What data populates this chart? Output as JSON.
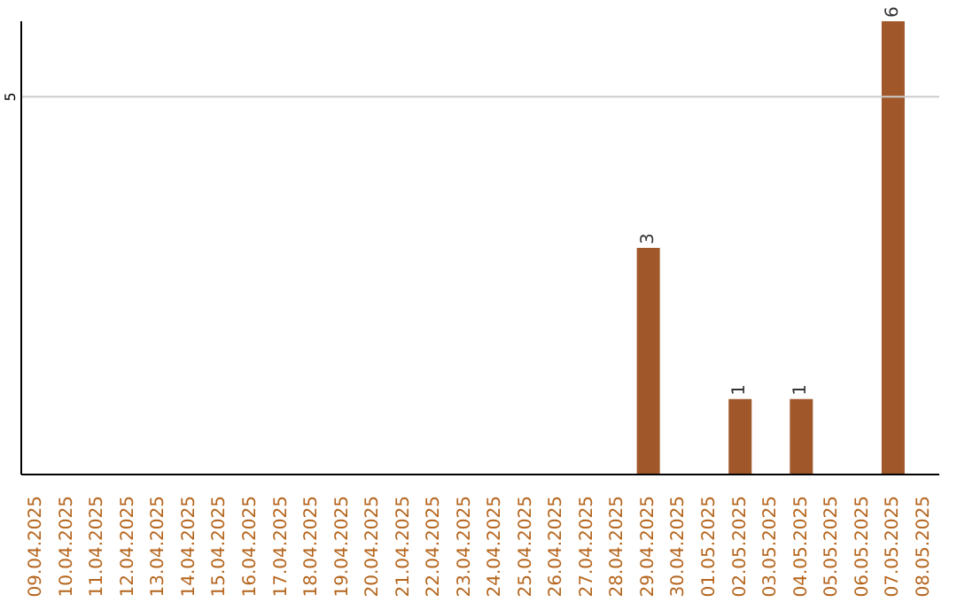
{
  "chart_data": {
    "type": "bar",
    "categories": [
      "09.04.2025",
      "10.04.2025",
      "11.04.2025",
      "12.04.2025",
      "13.04.2025",
      "14.04.2025",
      "15.04.2025",
      "16.04.2025",
      "17.04.2025",
      "18.04.2025",
      "19.04.2025",
      "20.04.2025",
      "21.04.2025",
      "22.04.2025",
      "23.04.2025",
      "24.04.2025",
      "25.04.2025",
      "26.04.2025",
      "27.04.2025",
      "28.04.2025",
      "29.04.2025",
      "30.04.2025",
      "01.05.2025",
      "02.05.2025",
      "03.05.2025",
      "04.05.2025",
      "05.05.2025",
      "06.05.2025",
      "07.05.2025",
      "08.05.2025"
    ],
    "values": [
      null,
      null,
      null,
      null,
      null,
      null,
      null,
      null,
      null,
      null,
      null,
      null,
      null,
      null,
      null,
      null,
      null,
      null,
      null,
      null,
      3,
      null,
      null,
      1,
      null,
      1,
      null,
      null,
      6,
      null
    ],
    "data_labels": true,
    "color": "#a0582b",
    "ylim": [
      0,
      6
    ],
    "ref_lines": [
      {
        "axis": "y",
        "value": 5,
        "label": "5",
        "color": "#cccccc"
      }
    ]
  }
}
